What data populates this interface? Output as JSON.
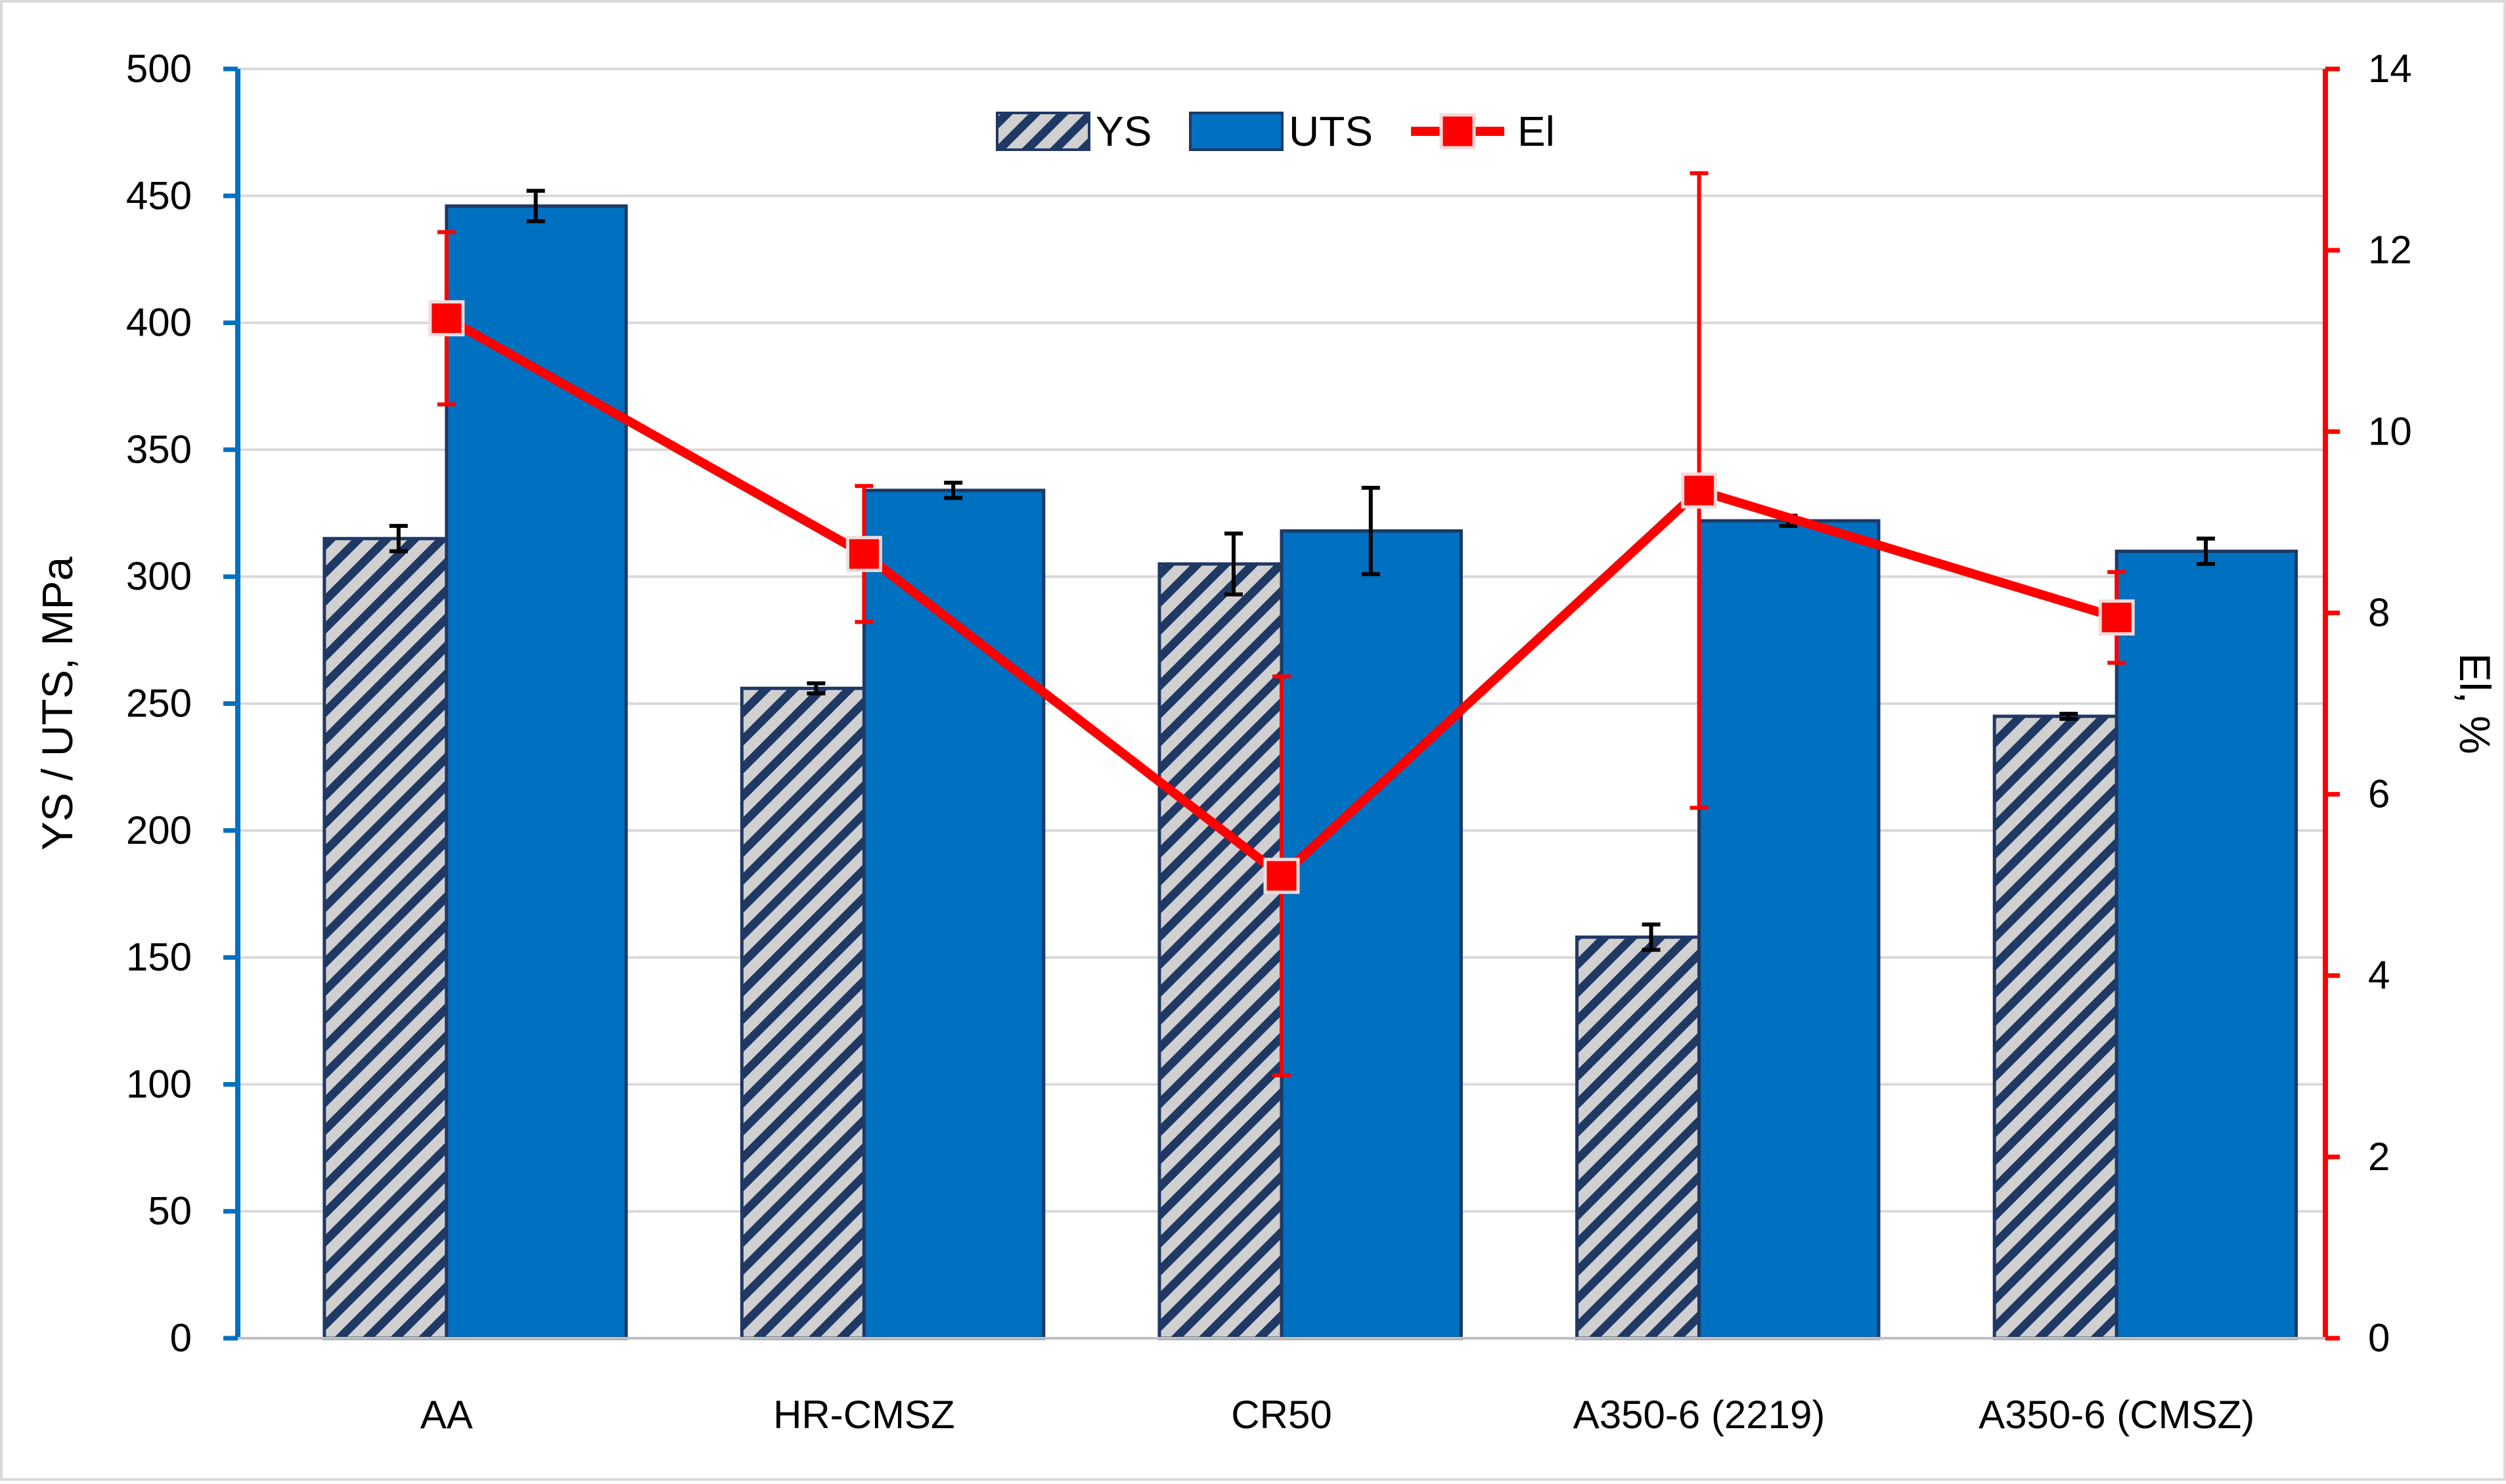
{
  "chart_data": {
    "type": "bar",
    "categories": [
      "AA",
      "HR-CMSZ",
      "CR50",
      "A350-6 (2219)",
      "A350-6 (CMSZ)"
    ],
    "series": [
      {
        "name": "YS",
        "kind": "bar",
        "pattern": "hatched",
        "axis": "left",
        "values": [
          315,
          256,
          305,
          158,
          245
        ],
        "errors": [
          5,
          2,
          12,
          5,
          1
        ]
      },
      {
        "name": "UTS",
        "kind": "bar",
        "axis": "left",
        "values": [
          446,
          334,
          318,
          322,
          310
        ],
        "errors": [
          6,
          3,
          17,
          2,
          5
        ]
      },
      {
        "name": "El",
        "kind": "line",
        "marker": "square",
        "axis": "right",
        "values": [
          11.25,
          8.65,
          5.1,
          9.35,
          7.95
        ],
        "errors": [
          0.95,
          0.75,
          2.2,
          3.5,
          0.5
        ]
      }
    ],
    "ylabel": "YS / UTS, MPa",
    "ylabel_right": "El, %",
    "ylim": [
      0,
      500
    ],
    "ylim_right": [
      0,
      14
    ],
    "yticks": [
      "0",
      "50",
      "100",
      "150",
      "200",
      "250",
      "300",
      "350",
      "400",
      "450",
      "500"
    ],
    "yticks_right": [
      "0",
      "2",
      "4",
      "6",
      "8",
      "10",
      "12",
      "14"
    ],
    "grid": true,
    "legend_position": "top-center",
    "colors": {
      "uts": "#0070C0",
      "bar_edge": "#1F3864",
      "hatch_line": "#1F3864",
      "hatch_bg": "#D0D0D0",
      "el": "#FF0000",
      "left_axis": "#0070C0",
      "right_axis": "#FF0000",
      "grid": "#D9D9D9",
      "text": "#000000"
    }
  }
}
